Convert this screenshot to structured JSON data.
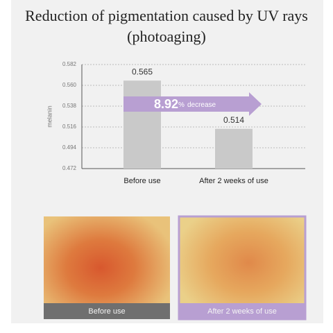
{
  "chart_data": {
    "type": "bar",
    "title": "Reduction of pigmentation caused by UV rays (photoaging)",
    "y_label": "melanin",
    "categories": [
      "Before use",
      "After 2 weeks of use"
    ],
    "values": [
      0.565,
      0.514
    ],
    "color": "#c9c9c9",
    "ylim": [
      0.472,
      0.582
    ],
    "yticks": [
      0.472,
      0.494,
      0.516,
      0.538,
      {
        "value": 0.56,
        "label": "0.560"
      },
      0.582
    ],
    "grid": true,
    "annotation": {
      "number": "8.92",
      "unit": "%",
      "text": "decrease",
      "color": "#b89fd2"
    }
  },
  "images": [
    {
      "caption": "Before use",
      "caption_color": "#6f6f6f"
    },
    {
      "caption": "After 2 weeks of use",
      "caption_color": "#b89fd2"
    }
  ]
}
